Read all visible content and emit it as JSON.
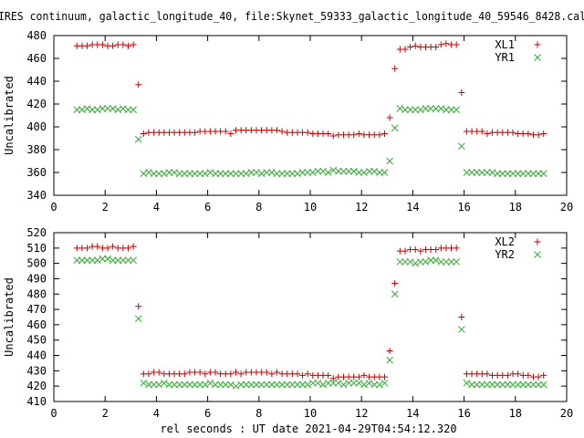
{
  "figure": {
    "title": "IRES continuum, galactic_longitude_40, file:Skynet_59333_galactic_longitude_40_59546_8428.cal",
    "xlabel": "rel seconds : UT date 2021-04-29T04:54:12.320"
  },
  "colors": {
    "red": "#cc0000",
    "green": "#33aa33",
    "axis": "#000000"
  },
  "chart_data": [
    {
      "type": "scatter",
      "ylabel": "Uncalibrated",
      "xlim": [
        0,
        20
      ],
      "ylim": [
        340,
        480
      ],
      "xticks": [
        0,
        2,
        4,
        6,
        8,
        10,
        12,
        14,
        16,
        18,
        20
      ],
      "yticks": [
        340,
        360,
        380,
        400,
        420,
        440,
        460,
        480
      ],
      "legend_position": "top-right",
      "series": [
        {
          "name": "XL1",
          "marker": "plus",
          "color": "#cc0000",
          "x": [
            0.9,
            1.1,
            1.3,
            1.5,
            1.7,
            1.9,
            2.1,
            2.3,
            2.5,
            2.7,
            2.9,
            3.1,
            3.3,
            3.5,
            3.7,
            3.9,
            4.1,
            4.3,
            4.5,
            4.7,
            4.9,
            5.1,
            5.3,
            5.5,
            5.7,
            5.9,
            6.1,
            6.3,
            6.5,
            6.7,
            6.9,
            7.1,
            7.3,
            7.5,
            7.7,
            7.9,
            8.1,
            8.3,
            8.5,
            8.7,
            8.9,
            9.1,
            9.3,
            9.5,
            9.7,
            9.9,
            10.1,
            10.3,
            10.5,
            10.7,
            10.9,
            11.1,
            11.3,
            11.5,
            11.7,
            11.9,
            12.1,
            12.3,
            12.5,
            12.7,
            12.9,
            13.1,
            13.3,
            13.5,
            13.7,
            13.9,
            14.1,
            14.3,
            14.5,
            14.7,
            14.9,
            15.1,
            15.3,
            15.5,
            15.7,
            15.9,
            16.1,
            16.3,
            16.5,
            16.7,
            16.9,
            17.1,
            17.3,
            17.5,
            17.7,
            17.9,
            18.1,
            18.3,
            18.5,
            18.7,
            18.9,
            19.1
          ],
          "y": [
            471,
            471,
            471,
            472,
            472,
            472,
            471,
            471,
            472,
            472,
            471,
            472,
            437,
            394,
            395,
            395,
            395,
            395,
            395,
            395,
            395,
            395,
            395,
            395,
            396,
            396,
            396,
            396,
            396,
            396,
            394,
            397,
            397,
            397,
            397,
            397,
            397,
            397,
            397,
            397,
            396,
            395,
            395,
            395,
            395,
            395,
            394,
            394,
            394,
            394,
            392,
            393,
            393,
            393,
            393,
            394,
            393,
            393,
            393,
            393,
            394,
            408,
            451,
            468,
            468,
            470,
            471,
            470,
            470,
            470,
            470,
            472,
            473,
            472,
            472,
            430,
            396,
            396,
            396,
            396,
            394,
            395,
            395,
            395,
            395,
            395,
            394,
            394,
            394,
            393,
            393,
            394
          ]
        },
        {
          "name": "YR1",
          "marker": "cross",
          "color": "#33aa33",
          "x": [
            0.9,
            1.1,
            1.3,
            1.5,
            1.7,
            1.9,
            2.1,
            2.3,
            2.5,
            2.7,
            2.9,
            3.1,
            3.3,
            3.5,
            3.7,
            3.9,
            4.1,
            4.3,
            4.5,
            4.7,
            4.9,
            5.1,
            5.3,
            5.5,
            5.7,
            5.9,
            6.1,
            6.3,
            6.5,
            6.7,
            6.9,
            7.1,
            7.3,
            7.5,
            7.7,
            7.9,
            8.1,
            8.3,
            8.5,
            8.7,
            8.9,
            9.1,
            9.3,
            9.5,
            9.7,
            9.9,
            10.1,
            10.3,
            10.5,
            10.7,
            10.9,
            11.1,
            11.3,
            11.5,
            11.7,
            11.9,
            12.1,
            12.3,
            12.5,
            12.7,
            12.9,
            13.1,
            13.3,
            13.5,
            13.7,
            13.9,
            14.1,
            14.3,
            14.5,
            14.7,
            14.9,
            15.1,
            15.3,
            15.5,
            15.7,
            15.9,
            16.1,
            16.3,
            16.5,
            16.7,
            16.9,
            17.1,
            17.3,
            17.5,
            17.7,
            17.9,
            18.1,
            18.3,
            18.5,
            18.7,
            18.9,
            19.1
          ],
          "y": [
            415,
            415,
            416,
            415,
            415,
            416,
            416,
            416,
            415,
            416,
            415,
            415,
            389,
            359,
            360,
            359,
            359,
            359,
            360,
            360,
            359,
            359,
            359,
            359,
            359,
            359,
            360,
            359,
            359,
            359,
            359,
            359,
            359,
            359,
            360,
            360,
            359,
            360,
            360,
            359,
            359,
            359,
            359,
            359,
            360,
            360,
            360,
            361,
            361,
            360,
            362,
            361,
            361,
            361,
            361,
            360,
            360,
            361,
            361,
            360,
            360,
            370,
            399,
            416,
            415,
            415,
            415,
            415,
            416,
            416,
            416,
            416,
            415,
            415,
            415,
            383,
            360,
            360,
            360,
            360,
            360,
            360,
            359,
            359,
            359,
            359,
            359,
            359,
            359,
            359,
            359,
            359
          ]
        }
      ]
    },
    {
      "type": "scatter",
      "ylabel": "Uncalibrated",
      "xlim": [
        0,
        20
      ],
      "ylim": [
        410,
        520
      ],
      "xticks": [
        0,
        2,
        4,
        6,
        8,
        10,
        12,
        14,
        16,
        18,
        20
      ],
      "yticks": [
        410,
        420,
        430,
        440,
        450,
        460,
        470,
        480,
        490,
        500,
        510,
        520
      ],
      "legend_position": "top-right",
      "series": [
        {
          "name": "XL2",
          "marker": "plus",
          "color": "#cc0000",
          "x": [
            0.9,
            1.1,
            1.3,
            1.5,
            1.7,
            1.9,
            2.1,
            2.3,
            2.5,
            2.7,
            2.9,
            3.1,
            3.3,
            3.5,
            3.7,
            3.9,
            4.1,
            4.3,
            4.5,
            4.7,
            4.9,
            5.1,
            5.3,
            5.5,
            5.7,
            5.9,
            6.1,
            6.3,
            6.5,
            6.7,
            6.9,
            7.1,
            7.3,
            7.5,
            7.7,
            7.9,
            8.1,
            8.3,
            8.5,
            8.7,
            8.9,
            9.1,
            9.3,
            9.5,
            9.7,
            9.9,
            10.1,
            10.3,
            10.5,
            10.7,
            10.9,
            11.1,
            11.3,
            11.5,
            11.7,
            11.9,
            12.1,
            12.3,
            12.5,
            12.7,
            12.9,
            13.1,
            13.3,
            13.5,
            13.7,
            13.9,
            14.1,
            14.3,
            14.5,
            14.7,
            14.9,
            15.1,
            15.3,
            15.5,
            15.7,
            15.9,
            16.1,
            16.3,
            16.5,
            16.7,
            16.9,
            17.1,
            17.3,
            17.5,
            17.7,
            17.9,
            18.1,
            18.3,
            18.5,
            18.7,
            18.9,
            19.1
          ],
          "y": [
            510,
            510,
            510,
            511,
            511,
            510,
            510,
            511,
            510,
            510,
            510,
            511,
            472,
            428,
            428,
            429,
            429,
            428,
            428,
            428,
            428,
            428,
            429,
            429,
            429,
            428,
            429,
            429,
            428,
            428,
            428,
            429,
            428,
            429,
            429,
            429,
            429,
            429,
            428,
            429,
            428,
            428,
            428,
            428,
            427,
            428,
            427,
            427,
            427,
            427,
            425,
            426,
            426,
            426,
            426,
            426,
            427,
            426,
            426,
            426,
            426,
            443,
            487,
            508,
            508,
            509,
            509,
            508,
            509,
            509,
            509,
            510,
            510,
            510,
            510,
            465,
            428,
            428,
            428,
            428,
            428,
            427,
            427,
            427,
            427,
            428,
            428,
            427,
            427,
            426,
            426,
            427
          ]
        },
        {
          "name": "YR2",
          "marker": "cross",
          "color": "#33aa33",
          "x": [
            0.9,
            1.1,
            1.3,
            1.5,
            1.7,
            1.9,
            2.1,
            2.3,
            2.5,
            2.7,
            2.9,
            3.1,
            3.3,
            3.5,
            3.7,
            3.9,
            4.1,
            4.3,
            4.5,
            4.7,
            4.9,
            5.1,
            5.3,
            5.5,
            5.7,
            5.9,
            6.1,
            6.3,
            6.5,
            6.7,
            6.9,
            7.1,
            7.3,
            7.5,
            7.7,
            7.9,
            8.1,
            8.3,
            8.5,
            8.7,
            8.9,
            9.1,
            9.3,
            9.5,
            9.7,
            9.9,
            10.1,
            10.3,
            10.5,
            10.7,
            10.9,
            11.1,
            11.3,
            11.5,
            11.7,
            11.9,
            12.1,
            12.3,
            12.5,
            12.7,
            12.9,
            13.1,
            13.3,
            13.5,
            13.7,
            13.9,
            14.1,
            14.3,
            14.5,
            14.7,
            14.9,
            15.1,
            15.3,
            15.5,
            15.7,
            15.9,
            16.1,
            16.3,
            16.5,
            16.7,
            16.9,
            17.1,
            17.3,
            17.5,
            17.7,
            17.9,
            18.1,
            18.3,
            18.5,
            18.7,
            18.9,
            19.1
          ],
          "y": [
            502,
            502,
            502,
            502,
            502,
            503,
            503,
            502,
            502,
            502,
            502,
            502,
            464,
            422,
            421,
            421,
            421,
            422,
            421,
            421,
            421,
            421,
            421,
            421,
            421,
            421,
            422,
            421,
            421,
            421,
            421,
            420,
            421,
            421,
            421,
            421,
            421,
            421,
            421,
            421,
            421,
            421,
            421,
            421,
            421,
            421,
            422,
            422,
            421,
            422,
            422,
            422,
            421,
            422,
            422,
            422,
            421,
            422,
            421,
            421,
            422,
            437,
            480,
            501,
            501,
            501,
            500,
            501,
            501,
            502,
            502,
            501,
            501,
            501,
            501,
            457,
            422,
            421,
            421,
            421,
            421,
            421,
            421,
            421,
            421,
            421,
            421,
            421,
            421,
            421,
            421,
            421
          ]
        }
      ]
    }
  ]
}
